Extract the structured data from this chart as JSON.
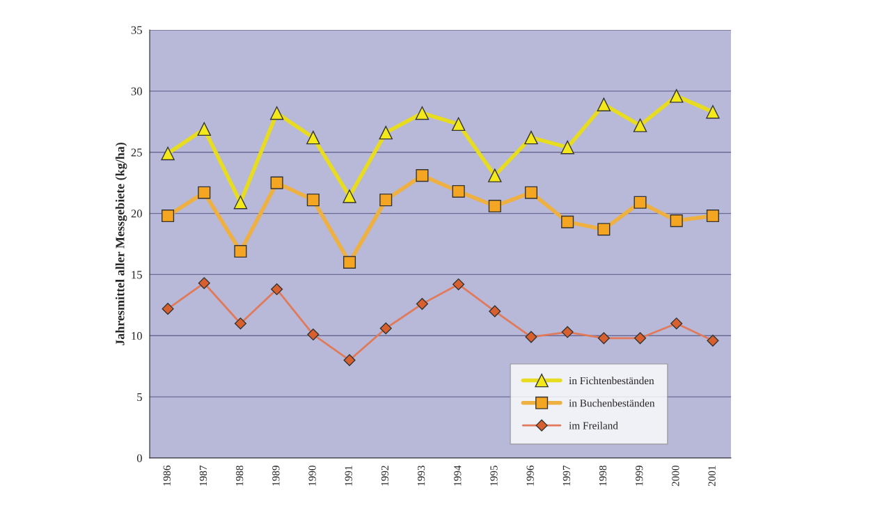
{
  "chart_data": {
    "type": "line",
    "ylabel": "Jahresmittel aller Messgebiete (kg/ha)",
    "categories": [
      "1986",
      "1987",
      "1988",
      "1989",
      "1990",
      "1991",
      "1992",
      "1993",
      "1994",
      "1995",
      "1996",
      "1997",
      "1998",
      "1999",
      "2000",
      "2001"
    ],
    "series": [
      {
        "name": "in Fichtenbeständen",
        "color": "#e8dc20",
        "marker": "triangle",
        "values": [
          24.9,
          26.9,
          20.9,
          28.2,
          26.2,
          21.4,
          26.6,
          28.2,
          27.3,
          23.1,
          26.2,
          25.4,
          28.9,
          27.2,
          29.6,
          28.3
        ]
      },
      {
        "name": "in Buchenbeständen",
        "color": "#eeb040",
        "marker": "square",
        "values": [
          19.8,
          21.7,
          16.9,
          22.5,
          21.1,
          16.0,
          21.1,
          23.1,
          21.8,
          20.6,
          21.7,
          19.3,
          18.7,
          20.9,
          19.4,
          19.8
        ]
      },
      {
        "name": "im Freiland",
        "color": "#e07a5a",
        "marker": "diamond",
        "values": [
          12.2,
          14.3,
          11.0,
          13.8,
          10.1,
          8.0,
          10.6,
          12.6,
          14.2,
          12.0,
          9.9,
          10.3,
          9.8,
          9.8,
          11.0,
          9.6
        ]
      }
    ],
    "ylim": [
      0,
      35
    ],
    "yticks": [
      0,
      5,
      10,
      15,
      20,
      25,
      30,
      35
    ],
    "grid": "y",
    "legend": "bottom right"
  }
}
